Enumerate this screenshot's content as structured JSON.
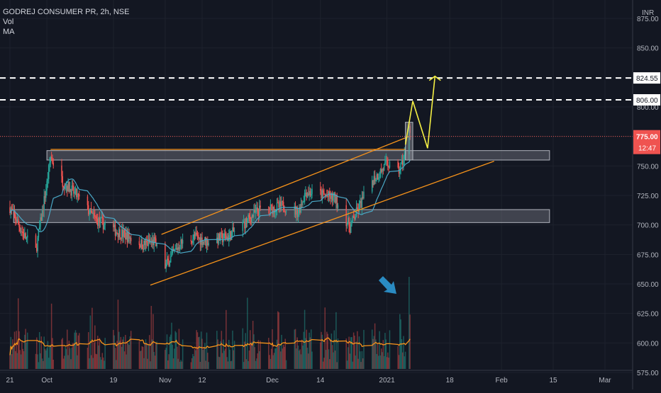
{
  "chart_data": {
    "type": "candlestick",
    "symbol_line": "GODREJ CONSUMER PR, 2h, NSE",
    "indicators": [
      "Vol",
      "MA"
    ],
    "currency_label": "INR",
    "y_ticks": [
      875,
      850,
      825,
      800,
      775,
      750,
      725,
      700,
      675,
      650,
      625,
      600,
      575
    ],
    "y_tick_labels": [
      "875.00",
      "850.00",
      "825.00",
      "800.00",
      "775.00",
      "750.00",
      "725.00",
      "700.00",
      "675.00",
      "650.00",
      "625.00",
      "600.00",
      "575.00"
    ],
    "x_ticks": [
      {
        "label": "21",
        "date": "2020-09-21"
      },
      {
        "label": "Oct",
        "date": "2020-10-01"
      },
      {
        "label": "19",
        "date": "2020-10-19"
      },
      {
        "label": "Nov",
        "date": "2020-11-02"
      },
      {
        "label": "12",
        "date": "2020-11-12"
      },
      {
        "label": "Dec",
        "date": "2020-12-01"
      },
      {
        "label": "14",
        "date": "2020-12-14"
      },
      {
        "label": "2021",
        "date": "2021-01-01"
      },
      {
        "label": "18",
        "date": "2021-01-18"
      },
      {
        "label": "Feb",
        "date": "2021-02-01"
      },
      {
        "label": "15",
        "date": "2021-02-15"
      },
      {
        "label": "Mar",
        "date": "2021-03-01"
      }
    ],
    "price_levels": [
      {
        "value": 824.55,
        "label": "824.55",
        "style": "dashed-white"
      },
      {
        "value": 806.0,
        "label": "806.00",
        "style": "dashed-white"
      }
    ],
    "last_price": {
      "value": 775.0,
      "label": "775.00",
      "color": "#ef5350"
    },
    "countdown_label": "12:47",
    "zones": [
      {
        "from_date": "2020-10-01",
        "to_date": "2021-02-14",
        "low": 755,
        "high": 763
      },
      {
        "from_date": "2020-09-22",
        "to_date": "2021-02-14",
        "low": 702,
        "high": 713
      }
    ],
    "channel_lines": [
      {
        "points": [
          [
            "2020-11-01",
            692
          ],
          [
            "2021-01-07",
            775
          ]
        ],
        "color": "#f7931a"
      },
      {
        "points": [
          [
            "2020-10-29",
            649
          ],
          [
            "2021-01-30",
            754
          ]
        ],
        "color": "#f7931a"
      },
      {
        "points": [
          [
            "2020-10-02",
            764
          ],
          [
            "2021-01-06",
            764
          ]
        ],
        "color": "#f7931a"
      }
    ],
    "projection_path": {
      "points": [
        [
          "2021-01-06",
          768
        ],
        [
          "2021-01-08",
          805
        ],
        [
          "2021-01-12",
          765
        ],
        [
          "2021-01-14",
          826
        ]
      ],
      "color": "#f5f044"
    },
    "breakout_box": {
      "from_date": "2021-01-06",
      "to_date": "2021-01-08",
      "low": 755,
      "high": 787
    },
    "volume_arrow_color": "#2a8bc2",
    "colors": {
      "up": "#26a69a",
      "down": "#ef5350",
      "ma": "#4aa8c6",
      "volume_ma": "#f7931a",
      "background": "#131722"
    }
  }
}
